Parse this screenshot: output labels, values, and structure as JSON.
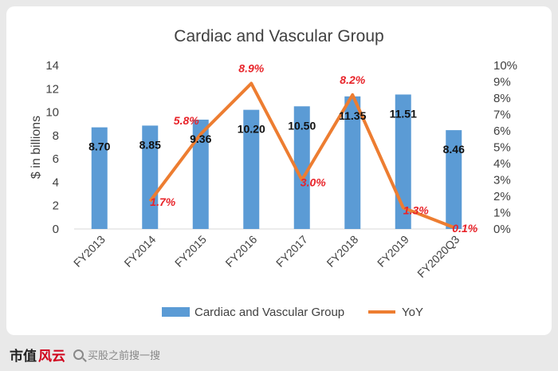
{
  "chart_data": {
    "type": "bar",
    "title": "Cardiac and Vascular Group",
    "ylabel": "$ in billions",
    "y2label": "",
    "categories": [
      "FY2013",
      "FY2014",
      "FY2015",
      "FY2016",
      "FY2017",
      "FY2018",
      "FY2019",
      "FY2020Q3"
    ],
    "ylim": [
      0,
      14
    ],
    "yticks": [
      "0",
      "2",
      "4",
      "6",
      "8",
      "10",
      "12",
      "14"
    ],
    "y2lim": [
      0,
      10
    ],
    "y2ticks": [
      "0%",
      "1%",
      "2%",
      "3%",
      "4%",
      "5%",
      "6%",
      "7%",
      "8%",
      "9%",
      "10%"
    ],
    "series": [
      {
        "name": "Cardiac and Vascular Group",
        "type": "bar",
        "axis": "left",
        "color": "#5b9bd5",
        "values": [
          8.7,
          8.85,
          9.36,
          10.2,
          10.5,
          11.35,
          11.51,
          8.46
        ],
        "labels": [
          "8.70",
          "8.85",
          "9.36",
          "10.20",
          "10.50",
          "11.35",
          "11.51",
          "8.46"
        ]
      },
      {
        "name": "YoY",
        "type": "line",
        "axis": "right",
        "color": "#ed7d31",
        "label_color": "#e8242a",
        "values": [
          null,
          1.7,
          5.8,
          8.9,
          3.0,
          8.2,
          1.3,
          0.1
        ],
        "labels": [
          null,
          "1.7%",
          "5.8%",
          "8.9%",
          "3.0%",
          "8.2%",
          "1.3%",
          "0.1%"
        ]
      }
    ],
    "legend_position": "bottom",
    "grid": false
  },
  "footer": {
    "brand_text": "市值",
    "brand_mark": "风云",
    "search_placeholder": "买股之前搜一搜",
    "icon": "search-icon"
  }
}
